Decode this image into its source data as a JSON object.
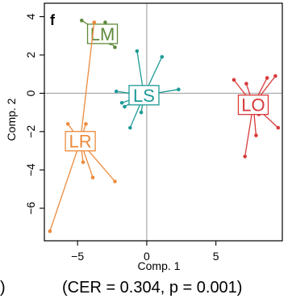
{
  "chart_data": {
    "type": "scatter",
    "panel_label": "f",
    "xlabel": "Comp. 1",
    "ylabel": "Comp. 2",
    "xlim": [
      -7.4,
      9.8
    ],
    "ylim": [
      -7.7,
      4.7
    ],
    "xticks": [
      -5,
      0,
      5
    ],
    "xtick_labels": [
      "−5",
      "0",
      "5"
    ],
    "yticks": [
      4,
      2,
      0,
      -2,
      -4,
      -6
    ],
    "ytick_labels": [
      "4",
      "2",
      "0",
      "−2",
      "−4",
      "−6"
    ],
    "reference_lines": {
      "x": 0,
      "y": 0
    },
    "caption": "(CER = 0.304, p = 0.001)",
    "left_fragment": ")",
    "groups": [
      {
        "label": "LM",
        "color": "#5e8a3a",
        "centroid": [
          -3.2,
          3.1
        ],
        "points": [
          [
            -4.7,
            3.8
          ],
          [
            -3.0,
            3.7
          ],
          [
            -2.8,
            3.5
          ],
          [
            -3.6,
            3.3
          ],
          [
            -2.6,
            2.6
          ],
          [
            -2.3,
            2.4
          ]
        ]
      },
      {
        "label": "LS",
        "color": "#1e9a96",
        "centroid": [
          -0.2,
          -0.1
        ],
        "points": [
          [
            -0.7,
            2.2
          ],
          [
            1.1,
            1.9
          ],
          [
            2.3,
            0.2
          ],
          [
            -2.2,
            0.1
          ],
          [
            -1.8,
            -0.5
          ],
          [
            -1.6,
            -0.7
          ],
          [
            -0.4,
            -1.0
          ],
          [
            -1.2,
            -1.8
          ]
        ]
      },
      {
        "label": "LO",
        "color": "#d83a3a",
        "centroid": [
          7.7,
          -0.6
        ],
        "points": [
          [
            6.3,
            0.7
          ],
          [
            7.2,
            0.5
          ],
          [
            8.7,
            0.8
          ],
          [
            9.3,
            0.9
          ],
          [
            8.1,
            -1.1
          ],
          [
            9.5,
            -1.8
          ],
          [
            7.9,
            -2.2
          ],
          [
            7.1,
            -3.3
          ]
        ]
      },
      {
        "label": "LR",
        "color": "#ec8a3c",
        "centroid": [
          -4.8,
          -2.5
        ],
        "points": [
          [
            -3.8,
            3.7
          ],
          [
            -5.7,
            -1.6
          ],
          [
            -4.4,
            -1.6
          ],
          [
            -5.3,
            -2.9
          ],
          [
            -4.6,
            -3.6
          ],
          [
            -3.9,
            -4.4
          ],
          [
            -2.3,
            -4.6
          ],
          [
            -7.0,
            -7.2
          ]
        ]
      }
    ]
  }
}
